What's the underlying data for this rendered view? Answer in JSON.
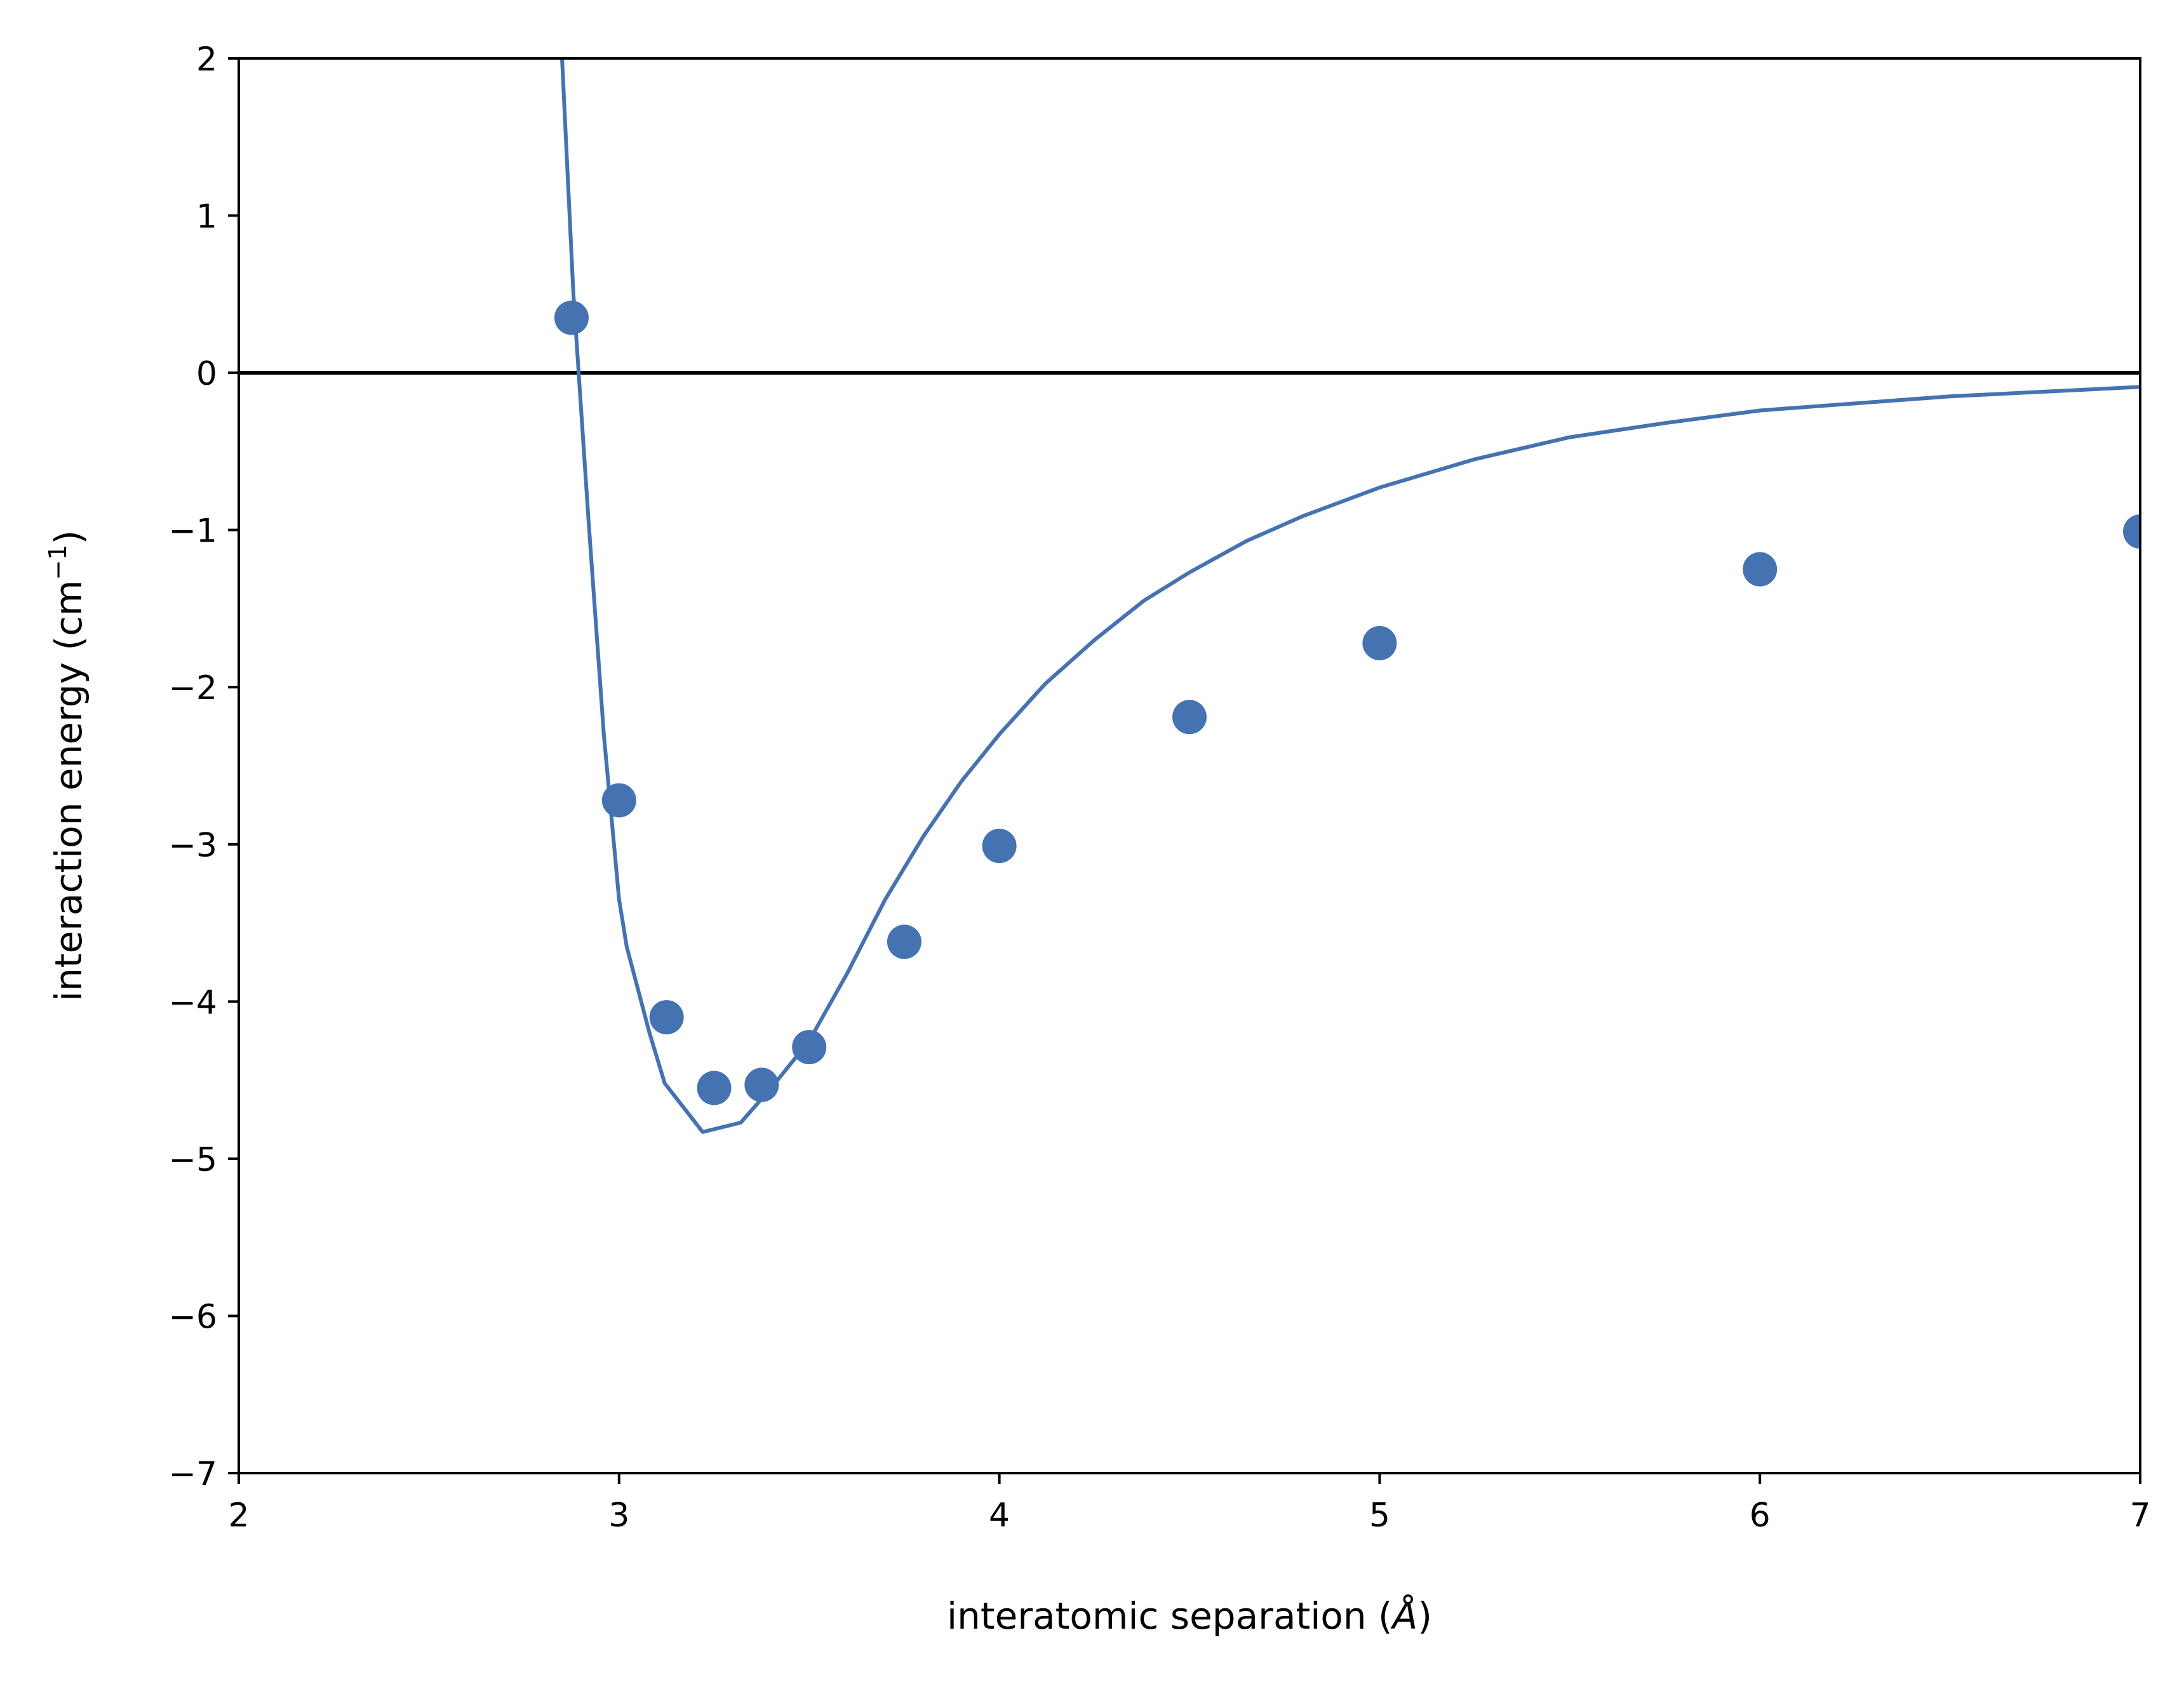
{
  "chart_data": {
    "type": "line",
    "xlabel_prefix": "interatomic separation (",
    "xlabel_unit": "Å",
    "xlabel_suffix": ")",
    "ylabel_prefix": "interaction energy (cm",
    "ylabel_superscript": "−1",
    "ylabel_suffix": ")",
    "xlim": [
      2,
      7
    ],
    "ylim": [
      -7,
      2
    ],
    "x_ticks": [
      2,
      3,
      4,
      5,
      6,
      7
    ],
    "y_ticks": [
      2,
      1,
      0,
      -1,
      -2,
      -3,
      -4,
      -5,
      -6,
      -7
    ],
    "tick_labels_x": [
      "2",
      "3",
      "4",
      "5",
      "6",
      "7"
    ],
    "tick_labels_y": [
      "2",
      "1",
      "0",
      "−1",
      "−2",
      "−3",
      "−4",
      "−5",
      "−6",
      "−7"
    ],
    "grid": false,
    "reference_line": {
      "y": 0,
      "color": "#000000"
    },
    "series": [
      {
        "type": "line",
        "color": "#4572b0",
        "x": [
          2.85,
          2.88,
          2.92,
          2.96,
          3.0,
          3.02,
          3.08,
          3.12,
          3.22,
          3.32,
          3.4,
          3.5,
          3.6,
          3.7,
          3.8,
          3.9,
          4.0,
          4.12,
          4.25,
          4.38,
          4.5,
          4.65,
          4.8,
          5.0,
          5.25,
          5.5,
          5.75,
          6.0,
          6.5,
          7.0
        ],
        "y": [
          2.0,
          0.5,
          -0.95,
          -2.3,
          -3.35,
          -3.65,
          -4.2,
          -4.52,
          -4.83,
          -4.77,
          -4.55,
          -4.25,
          -3.82,
          -3.35,
          -2.95,
          -2.6,
          -2.3,
          -1.98,
          -1.7,
          -1.45,
          -1.27,
          -1.07,
          -0.91,
          -0.73,
          -0.55,
          -0.41,
          -0.32,
          -0.24,
          -0.15,
          -0.09
        ]
      },
      {
        "type": "scatter",
        "color": "#4572b0",
        "x": [
          2.875,
          3.0,
          3.125,
          3.25,
          3.375,
          3.5,
          3.75,
          4.0,
          4.5,
          5.0,
          6.0,
          7.0
        ],
        "y": [
          0.35,
          -2.72,
          -4.1,
          -4.55,
          -4.53,
          -4.29,
          -3.62,
          -3.01,
          -2.19,
          -1.72,
          -1.25,
          -1.01
        ]
      }
    ]
  }
}
